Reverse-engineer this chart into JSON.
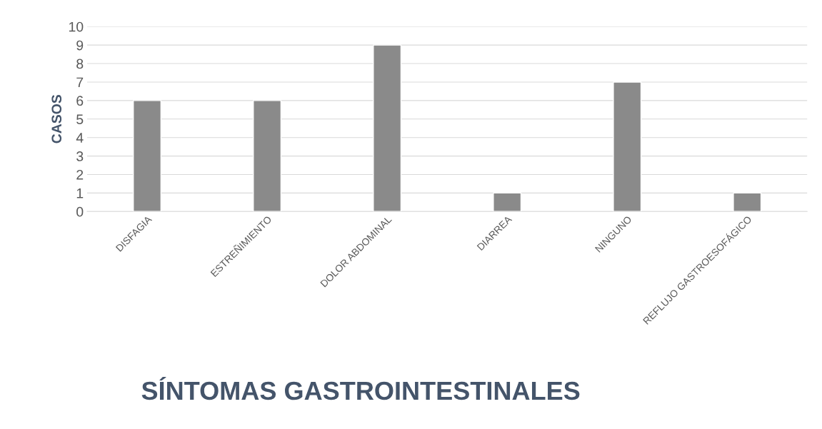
{
  "chart_data": {
    "type": "bar",
    "title": "SÍNTOMAS GASTROINTESTINALES",
    "ylabel": "CASOS",
    "categories": [
      "DISFAGIA",
      "ESTREÑIMIENTO",
      "DOLOR ABDOMINAL",
      "DIARREA",
      "NINGUNO",
      "REFLUJO GASTROESOFÁGICO"
    ],
    "values": [
      6,
      6,
      9,
      1,
      7,
      1
    ],
    "color": "#8a8a8a",
    "ylim": [
      0,
      10
    ],
    "yticks": [
      0,
      1,
      2,
      3,
      4,
      5,
      6,
      7,
      8,
      9,
      10
    ],
    "grid": "y",
    "legend": false
  }
}
